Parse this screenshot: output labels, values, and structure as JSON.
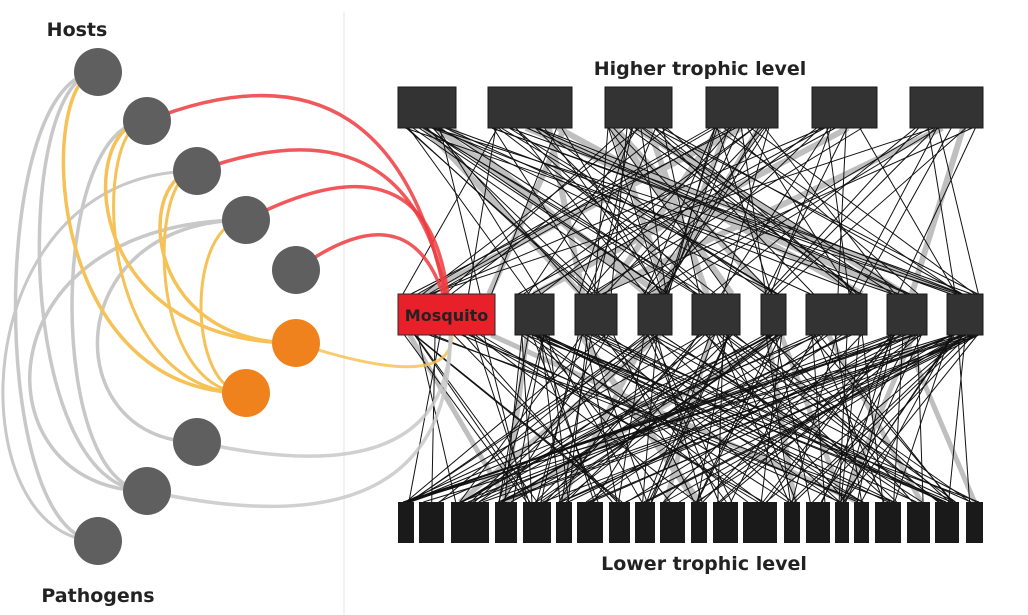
{
  "labels": {
    "hosts": "Hosts",
    "pathogens": "Pathogens",
    "higher_level": "Higher trophic level",
    "lower_level": "Lower trophic level",
    "mosquito": "Mosquito"
  },
  "colors": {
    "node_gray": "#5f5f5f",
    "node_orange": "#f0821e",
    "box_dark": "#333333",
    "box_black": "#1a1a1a",
    "mosquito_red": "#e8202a",
    "link_gray": "#c8c8c8",
    "link_yellow": "#f6c257",
    "link_red": "#ee3b40",
    "divider": "#e4e4e4"
  }
}
